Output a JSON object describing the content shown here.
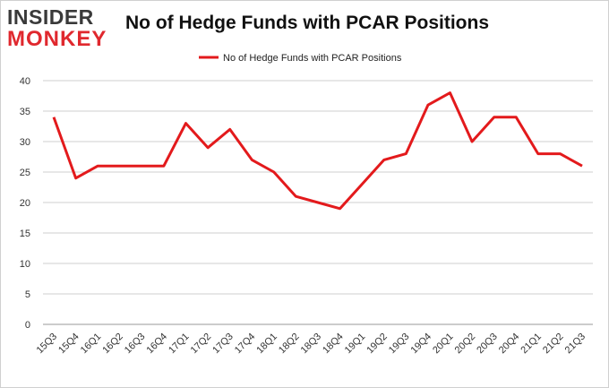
{
  "logo": {
    "line1": "INSIDER",
    "line2": "MONKEY"
  },
  "chart_data": {
    "type": "line",
    "title": "No of Hedge Funds with PCAR Positions",
    "xlabel": "",
    "ylabel": "",
    "categories": [
      "15Q3",
      "15Q4",
      "16Q1",
      "16Q2",
      "16Q3",
      "16Q4",
      "17Q1",
      "17Q2",
      "17Q3",
      "17Q4",
      "18Q1",
      "18Q2",
      "18Q3",
      "18Q4",
      "19Q1",
      "19Q2",
      "19Q3",
      "19Q4",
      "20Q1",
      "20Q2",
      "20Q3",
      "20Q4",
      "21Q1",
      "21Q2",
      "21Q3"
    ],
    "series": [
      {
        "name": "No of Hedge Funds with PCAR Positions",
        "color": "#e31a1c",
        "values": [
          34,
          24,
          26,
          26,
          26,
          26,
          33,
          29,
          32,
          27,
          25,
          21,
          20,
          19,
          23,
          27,
          28,
          36,
          38,
          30,
          34,
          34,
          28,
          28,
          26
        ]
      }
    ],
    "ylim": [
      0,
      40
    ],
    "yticks": [
      0,
      5,
      10,
      15,
      20,
      25,
      30,
      35,
      40
    ],
    "grid": true,
    "legend_position": "top-center"
  }
}
